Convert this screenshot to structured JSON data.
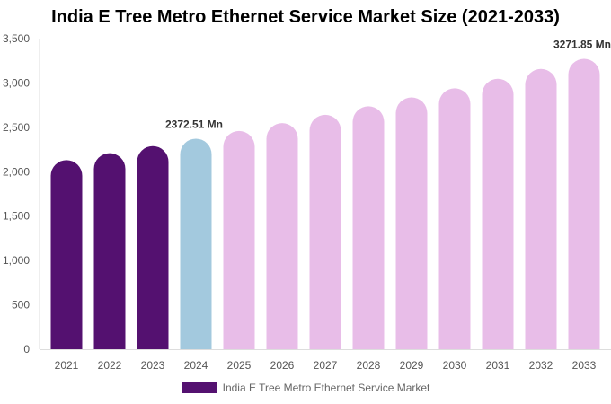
{
  "chart_data": {
    "type": "bar",
    "title": "India E Tree Metro Ethernet Service Market Size (2021-2033)",
    "categories": [
      "2021",
      "2022",
      "2023",
      "2024",
      "2025",
      "2026",
      "2027",
      "2028",
      "2029",
      "2030",
      "2031",
      "2032",
      "2033"
    ],
    "series": [
      {
        "name": "India E Tree Metro Ethernet Service Market",
        "values": [
          2131,
          2209,
          2289,
          2372.51,
          2459,
          2548,
          2641,
          2737,
          2837,
          2940,
          3047,
          3158,
          3271.85
        ]
      }
    ],
    "bar_colors": [
      "#541170",
      "#541170",
      "#541170",
      "#a3c9de",
      "#e8bde8",
      "#e8bde8",
      "#e8bde8",
      "#e8bde8",
      "#e8bde8",
      "#e8bde8",
      "#e8bde8",
      "#e8bde8",
      "#e8bde8"
    ],
    "data_labels": [
      {
        "category": "2024",
        "text": "2372.51 Mn"
      },
      {
        "category": "2033",
        "text": "3271.85 Mn"
      }
    ],
    "ylim": [
      0,
      3500
    ],
    "yticks": [
      "0",
      "500",
      "1,000",
      "1,500",
      "2,000",
      "2,500",
      "3,000",
      "3,500"
    ],
    "grid": false,
    "legend_position": "bottom",
    "legend_color": "#541170",
    "xlabel": "",
    "ylabel": ""
  }
}
